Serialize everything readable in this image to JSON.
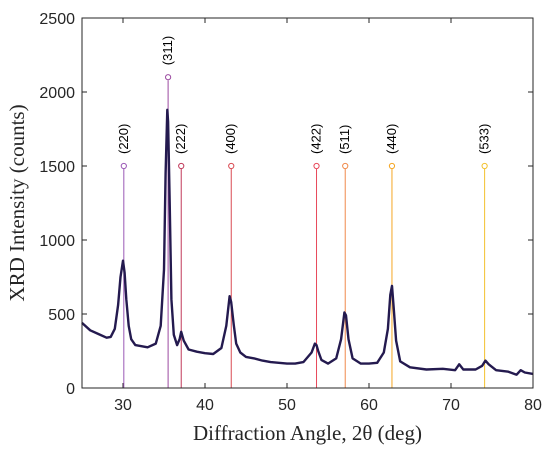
{
  "chart_data": {
    "type": "line",
    "title": "",
    "xlabel": "Diffraction Angle, 2θ (deg)",
    "ylabel": "XRD Intensity (counts)",
    "xlim": [
      25,
      80
    ],
    "ylim": [
      0,
      2500
    ],
    "xticks": [
      30,
      40,
      50,
      60,
      70,
      80
    ],
    "yticks": [
      0,
      500,
      1000,
      1500,
      2000,
      2500
    ],
    "grid": false,
    "legend": "none",
    "series": [
      {
        "color": "#241a4f",
        "x": [
          25.0,
          26.0,
          27.0,
          28.0,
          28.5,
          29.0,
          29.4,
          29.7,
          30.0,
          30.2,
          30.4,
          30.7,
          31.0,
          31.5,
          32.0,
          33.0,
          34.0,
          34.6,
          35.0,
          35.2,
          35.4,
          35.5,
          35.7,
          35.9,
          36.2,
          36.6,
          36.9,
          37.1,
          37.4,
          38.0,
          39.0,
          40.0,
          41.0,
          42.0,
          42.6,
          43.0,
          43.2,
          43.5,
          43.8,
          44.3,
          45.0,
          46.0,
          47.0,
          48.0,
          49.0,
          50.0,
          51.0,
          52.0,
          53.0,
          53.4,
          53.6,
          53.8,
          54.2,
          55.0,
          56.0,
          56.6,
          57.0,
          57.2,
          57.5,
          58.0,
          59.0,
          60.0,
          61.0,
          61.8,
          62.3,
          62.6,
          62.8,
          63.0,
          63.3,
          63.8,
          65.0,
          67.0,
          69.0,
          70.5,
          71.0,
          71.5,
          73.0,
          73.8,
          74.2,
          74.6,
          75.5,
          77.0,
          78.0,
          78.5,
          79.0,
          80.0
        ],
        "y": [
          440,
          390,
          365,
          340,
          345,
          400,
          560,
          750,
          860,
          780,
          600,
          420,
          330,
          290,
          285,
          275,
          300,
          420,
          800,
          1450,
          1880,
          1800,
          1250,
          600,
          360,
          290,
          330,
          380,
          320,
          260,
          245,
          235,
          230,
          270,
          420,
          620,
          580,
          430,
          300,
          240,
          210,
          200,
          185,
          175,
          170,
          165,
          165,
          175,
          240,
          300,
          290,
          250,
          190,
          165,
          200,
          330,
          510,
          490,
          330,
          200,
          165,
          165,
          170,
          240,
          400,
          630,
          690,
          550,
          320,
          180,
          140,
          125,
          130,
          120,
          160,
          125,
          125,
          150,
          185,
          160,
          120,
          110,
          90,
          120,
          105,
          95
        ]
      }
    ],
    "reference_lines": [
      {
        "label": "(220)",
        "x": 30.1,
        "top": 1500,
        "color": "#9b59b6"
      },
      {
        "label": "(311)",
        "x": 35.5,
        "top": 2100,
        "color": "#9b4aa0"
      },
      {
        "label": "(222)",
        "x": 37.1,
        "top": 1500,
        "color": "#c0395a"
      },
      {
        "label": "(400)",
        "x": 43.2,
        "top": 1500,
        "color": "#d94a52"
      },
      {
        "label": "(422)",
        "x": 53.6,
        "top": 1500,
        "color": "#e8485a"
      },
      {
        "label": "(511)",
        "x": 57.1,
        "top": 1500,
        "color": "#f08a4b"
      },
      {
        "label": "(440)",
        "x": 62.8,
        "top": 1500,
        "color": "#f5a623"
      },
      {
        "label": "(533)",
        "x": 74.1,
        "top": 1500,
        "color": "#f2c12e"
      }
    ]
  }
}
